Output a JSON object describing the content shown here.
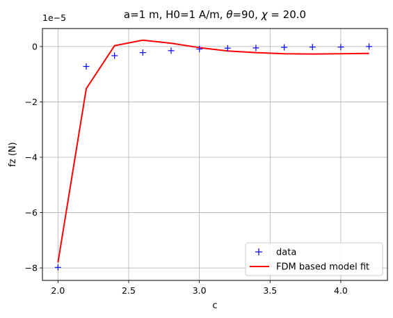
{
  "chart_data": {
    "type": "line",
    "title": "a=1 m, H0=1 A/m, θ=90, χ = 20.0",
    "title_parts": {
      "before_theta": "a=1 m, H0=1 A/m, ",
      "theta": "θ",
      "middle": "=90, ",
      "chi": "χ",
      "after_chi": " = 20.0"
    },
    "xlabel": "c",
    "ylabel": "fz (N)",
    "y_offset_label": "1e−5",
    "xlim": [
      1.89,
      4.33
    ],
    "ylim": [
      -8.45,
      0.65
    ],
    "xticks": [
      2.0,
      2.5,
      3.0,
      3.5,
      4.0
    ],
    "xtick_labels": [
      "2.0",
      "2.5",
      "3.0",
      "3.5",
      "4.0"
    ],
    "yticks": [
      -8,
      -6,
      -4,
      -2,
      0
    ],
    "ytick_labels": [
      "−8",
      "−6",
      "−4",
      "−2",
      "0"
    ],
    "grid": true,
    "legend_position": "lower-right",
    "x": [
      2.0,
      2.2,
      2.4,
      2.6,
      2.8,
      3.0,
      3.2,
      3.4,
      3.6,
      3.8,
      4.0,
      4.2
    ],
    "series": [
      {
        "name": "data",
        "style": "markers",
        "marker": "plus",
        "color": "#0000ff",
        "values": [
          -7.98,
          -0.72,
          -0.33,
          -0.22,
          -0.15,
          -0.09,
          -0.06,
          -0.05,
          -0.03,
          -0.02,
          -0.02,
          0.0
        ]
      },
      {
        "name": "FDM based model fit",
        "style": "line",
        "color": "#ff0000",
        "values": [
          -7.8,
          -1.52,
          0.03,
          0.23,
          0.12,
          -0.04,
          -0.16,
          -0.22,
          -0.26,
          -0.27,
          -0.26,
          -0.25
        ]
      }
    ]
  }
}
